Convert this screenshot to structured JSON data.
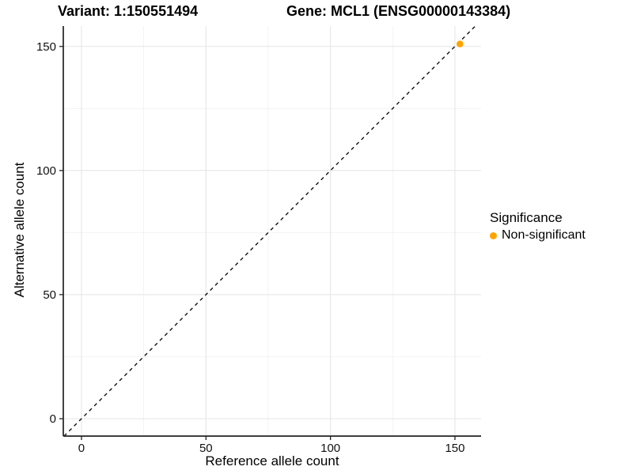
{
  "chart_data": {
    "type": "scatter",
    "title_left": "Variant: 1:150551494",
    "title_right": "Gene: MCL1 (ENSG00000143384)",
    "xlabel": "Reference allele count",
    "ylabel": "Alternative allele count",
    "xlim": [
      -7.3,
      160.5
    ],
    "ylim": [
      -7.0,
      158.2
    ],
    "xticks": [
      0,
      50,
      100,
      150
    ],
    "yticks": [
      0,
      50,
      100,
      150
    ],
    "xminor": [
      25,
      75,
      125
    ],
    "yminor": [
      25,
      75,
      125
    ],
    "grid": "major+minor",
    "points": [
      {
        "x": 152,
        "y": 151,
        "series": "Non-significant",
        "color": "#FFA500"
      }
    ],
    "reference_line": {
      "type": "abline",
      "slope": 1,
      "intercept": 0,
      "linestyle": "dashed",
      "color": "#111111"
    },
    "legend": {
      "title": "Significance",
      "position": "right",
      "items": [
        {
          "label": "Non-significant",
          "color": "#FFA500"
        }
      ]
    },
    "colors": {
      "background": "#FFFFFF",
      "grid_major": "#E6E6E6",
      "grid_minor": "#F1F1F1",
      "axis_line": "#222222",
      "tick_mark": "#222222",
      "tick_label": "#111111",
      "point": "#FFA500"
    }
  }
}
